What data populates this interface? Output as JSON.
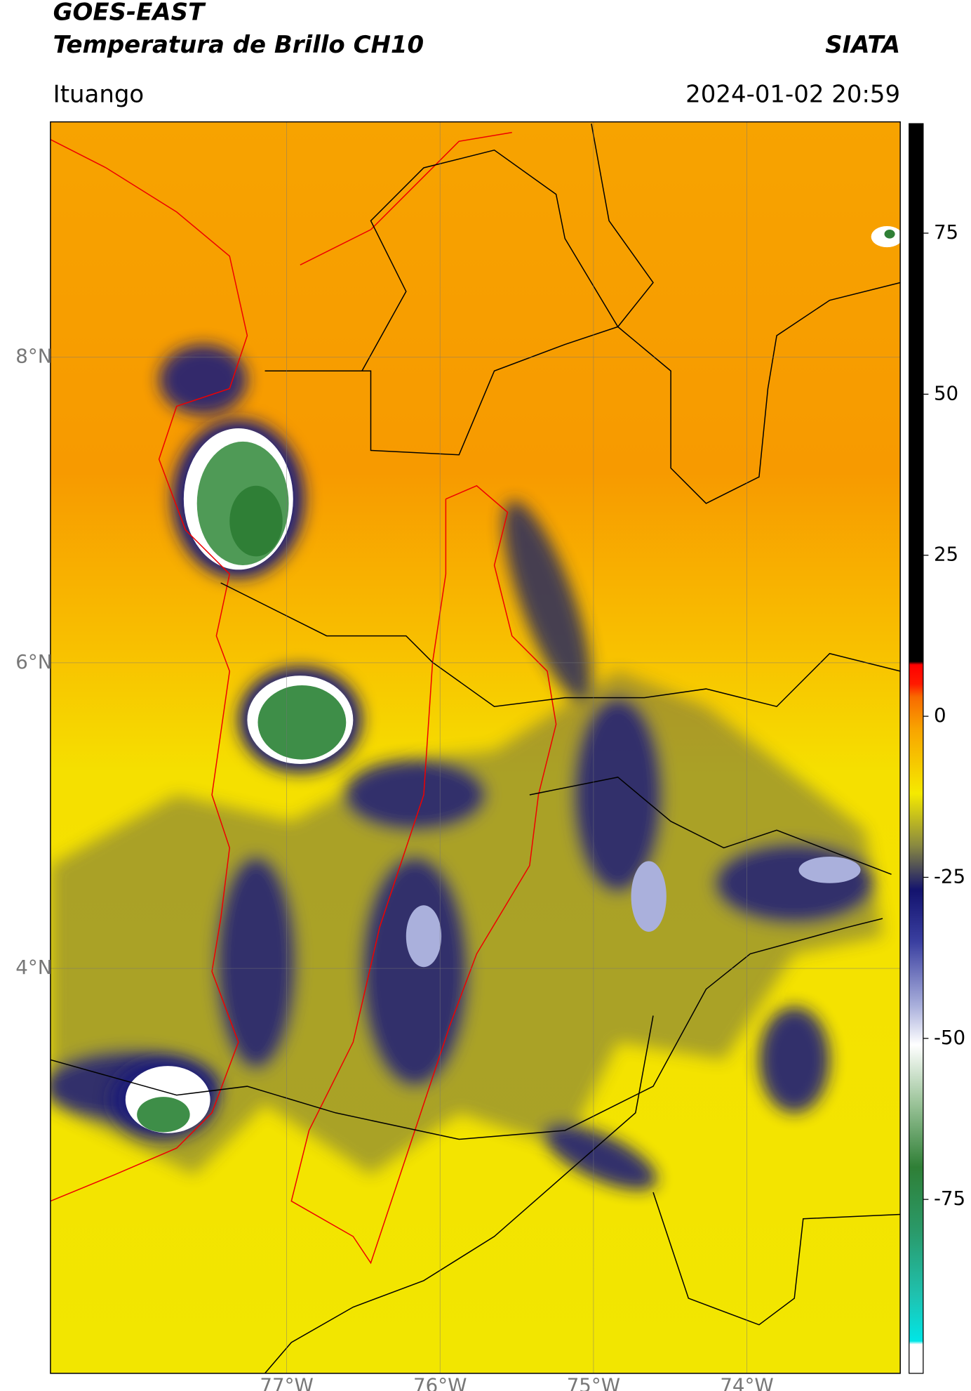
{
  "header": {
    "title": "GOES-EAST",
    "subtitle": "Temperatura de Brillo CH10",
    "source": "SIATA",
    "location": "Ituango",
    "datetime": "2024-01-02 20:59"
  },
  "map": {
    "xlim": [
      -78.54,
      -73.0
    ],
    "ylim": [
      1.35,
      9.54
    ],
    "xticks": [
      {
        "value": -77,
        "label": "77°W"
      },
      {
        "value": -76,
        "label": "76°W"
      },
      {
        "value": -75,
        "label": "75°W"
      },
      {
        "value": -74,
        "label": "74°W"
      }
    ],
    "yticks": [
      {
        "value": 8,
        "label": "8°N"
      },
      {
        "value": 6,
        "label": "6°N"
      },
      {
        "value": 4,
        "label": "4°N"
      }
    ],
    "grid": true
  },
  "colorbar": {
    "lim": [
      -102,
      92
    ],
    "ticks": [
      75,
      50,
      25,
      0,
      -25,
      -50,
      -75
    ],
    "color_stops": [
      {
        "value": -102,
        "color": "#ffffff"
      },
      {
        "value": -97.5,
        "color": "#ffffff"
      },
      {
        "value": -97,
        "color": "#00e6e6"
      },
      {
        "value": -90,
        "color": "#1fc2b0"
      },
      {
        "value": -80,
        "color": "#2a9a6a"
      },
      {
        "value": -70,
        "color": "#2f7f36"
      },
      {
        "value": -60,
        "color": "#9cc49a"
      },
      {
        "value": -51,
        "color": "#ffffff"
      },
      {
        "value": -45,
        "color": "#aab0dc"
      },
      {
        "value": -35,
        "color": "#3a3fa0"
      },
      {
        "value": -27,
        "color": "#13136e"
      },
      {
        "value": -20,
        "color": "#8a8a40"
      },
      {
        "value": -12,
        "color": "#f5ea00"
      },
      {
        "value": -2,
        "color": "#f8a400"
      },
      {
        "value": 3,
        "color": "#f86a00"
      },
      {
        "value": 5,
        "color": "#ff1a00"
      },
      {
        "value": 8,
        "color": "#ff0000"
      },
      {
        "value": 8.5,
        "color": "#000000"
      },
      {
        "value": 92,
        "color": "#000000"
      }
    ]
  }
}
